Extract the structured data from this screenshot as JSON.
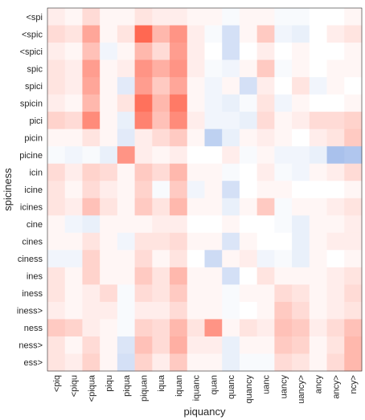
{
  "chart_data": {
    "type": "heatmap",
    "xlabel": "piquancy",
    "ylabel": "spiciness",
    "x_categories": [
      "<piq",
      "<piqu",
      "<piqua",
      "piqu",
      "piqua",
      "piquan",
      "iqua",
      "iquan",
      "iquanc",
      "quan",
      "quanc",
      "quancy",
      "uanc",
      "uancy",
      "uancy>",
      "ancy",
      "ancy>",
      "ncy>"
    ],
    "y_categories": [
      "<spi",
      "<spic",
      "<spici",
      "spic",
      "spici",
      "spicin",
      "pici",
      "picin",
      "picine",
      "icin",
      "icine",
      "icines",
      "cine",
      "cines",
      "ciness",
      "ines",
      "iness",
      "iness>",
      "ness",
      "ness>",
      "ess>"
    ],
    "values": [
      [
        0.1,
        0.05,
        0.2,
        0.05,
        0.05,
        0.15,
        0.1,
        0.1,
        0.05,
        0.05,
        -0.05,
        0.05,
        0.05,
        -0.05,
        -0.05,
        0.0,
        0.0,
        0.05
      ],
      [
        0.2,
        0.15,
        0.5,
        0.05,
        0.15,
        0.85,
        0.4,
        0.6,
        0.1,
        -0.05,
        -0.3,
        0.05,
        0.3,
        -0.1,
        -0.15,
        0.0,
        0.1,
        0.15
      ],
      [
        0.1,
        0.05,
        0.35,
        -0.1,
        0.05,
        0.4,
        0.2,
        0.55,
        0.1,
        0.0,
        -0.3,
        0.0,
        0.1,
        0.0,
        0.05,
        0.0,
        0.0,
        0.05
      ],
      [
        0.15,
        0.1,
        0.55,
        0.05,
        0.1,
        0.6,
        0.45,
        0.6,
        0.1,
        -0.05,
        -0.1,
        0.05,
        0.3,
        -0.05,
        0.05,
        0.0,
        0.05,
        0.05
      ],
      [
        0.15,
        0.1,
        0.5,
        0.05,
        -0.2,
        0.55,
        0.3,
        0.5,
        0.05,
        -0.1,
        0.05,
        -0.3,
        0.1,
        0.0,
        0.15,
        -0.1,
        0.05,
        0.0
      ],
      [
        0.1,
        0.05,
        0.4,
        0.05,
        0.15,
        0.8,
        0.4,
        0.75,
        0.05,
        -0.1,
        -0.15,
        -0.05,
        0.15,
        -0.1,
        0.05,
        0.0,
        0.0,
        0.05
      ],
      [
        0.25,
        0.2,
        0.65,
        0.05,
        -0.15,
        0.7,
        0.35,
        0.65,
        0.1,
        -0.1,
        -0.1,
        -0.15,
        0.2,
        0.05,
        0.1,
        0.2,
        0.2,
        0.25
      ],
      [
        0.05,
        0.05,
        0.15,
        0.05,
        -0.2,
        0.1,
        0.2,
        0.3,
        0.05,
        -0.45,
        -0.15,
        0.05,
        0.1,
        0.05,
        0.0,
        0.1,
        0.15,
        0.3
      ],
      [
        -0.05,
        -0.1,
        -0.05,
        -0.15,
        0.6,
        0.1,
        0.05,
        0.1,
        0.0,
        0.0,
        0.1,
        -0.05,
        0.05,
        -0.1,
        -0.1,
        -0.15,
        -0.6,
        -0.55
      ],
      [
        0.2,
        0.1,
        0.25,
        0.2,
        0.05,
        0.3,
        0.2,
        0.4,
        0.05,
        0.05,
        -0.05,
        0.0,
        0.1,
        -0.05,
        -0.1,
        0.05,
        0.1,
        0.2
      ],
      [
        0.15,
        0.05,
        0.2,
        0.1,
        0.05,
        0.25,
        -0.05,
        0.3,
        -0.1,
        0.05,
        -0.3,
        0.0,
        0.05,
        0.05,
        0.0,
        0.0,
        0.0,
        0.05
      ],
      [
        0.15,
        0.1,
        0.35,
        0.15,
        0.05,
        0.3,
        0.15,
        0.4,
        0.05,
        0.05,
        -0.15,
        0.05,
        0.3,
        -0.05,
        0.05,
        0.05,
        0.1,
        0.15
      ],
      [
        0.05,
        -0.1,
        -0.15,
        0.05,
        0.05,
        0.05,
        0.1,
        0.1,
        0.0,
        0.0,
        0.05,
        0.0,
        0.0,
        -0.05,
        -0.15,
        0.05,
        0.05,
        0.1
      ],
      [
        0.05,
        0.05,
        0.15,
        0.05,
        -0.1,
        0.15,
        0.15,
        0.2,
        0.05,
        0.05,
        -0.25,
        0.05,
        0.0,
        0.0,
        -0.15,
        0.05,
        0.1,
        0.1
      ],
      [
        -0.1,
        -0.1,
        0.25,
        0.05,
        0.05,
        0.2,
        0.05,
        0.15,
        0.0,
        -0.35,
        0.05,
        0.1,
        -0.1,
        -0.05,
        -0.15,
        0.05,
        0.0,
        0.05
      ],
      [
        0.15,
        0.05,
        0.25,
        0.05,
        0.05,
        0.3,
        0.15,
        0.4,
        0.05,
        0.05,
        -0.3,
        0.0,
        0.15,
        0.05,
        0.05,
        0.05,
        0.1,
        0.15
      ],
      [
        0.15,
        0.05,
        0.1,
        0.2,
        -0.05,
        0.2,
        0.15,
        0.3,
        0.05,
        0.05,
        -0.05,
        0.05,
        0.05,
        0.2,
        0.15,
        0.05,
        0.1,
        0.2
      ],
      [
        0.1,
        0.05,
        0.1,
        0.1,
        -0.05,
        0.1,
        0.1,
        0.2,
        0.05,
        0.05,
        -0.05,
        0.0,
        0.05,
        0.3,
        0.2,
        0.05,
        0.1,
        0.15
      ],
      [
        0.3,
        0.25,
        0.1,
        0.05,
        -0.05,
        0.25,
        0.2,
        0.4,
        0.15,
        0.6,
        0.05,
        0.15,
        0.1,
        0.35,
        0.3,
        0.1,
        0.2,
        0.35
      ],
      [
        0.15,
        0.05,
        0.2,
        0.05,
        -0.25,
        0.35,
        0.2,
        0.45,
        0.1,
        0.1,
        -0.15,
        0.05,
        0.05,
        0.3,
        0.25,
        0.05,
        0.15,
        0.4
      ],
      [
        0.15,
        0.1,
        0.25,
        0.05,
        -0.3,
        0.25,
        0.1,
        0.3,
        0.05,
        0.05,
        -0.15,
        -0.05,
        -0.05,
        0.2,
        0.15,
        0.05,
        0.2,
        0.4
      ]
    ],
    "value_range": [
      -1,
      1
    ],
    "colors": {
      "negative": "#6f98e0",
      "neutral": "#ffffff",
      "positive": "#ff4d33"
    },
    "grid": false
  }
}
